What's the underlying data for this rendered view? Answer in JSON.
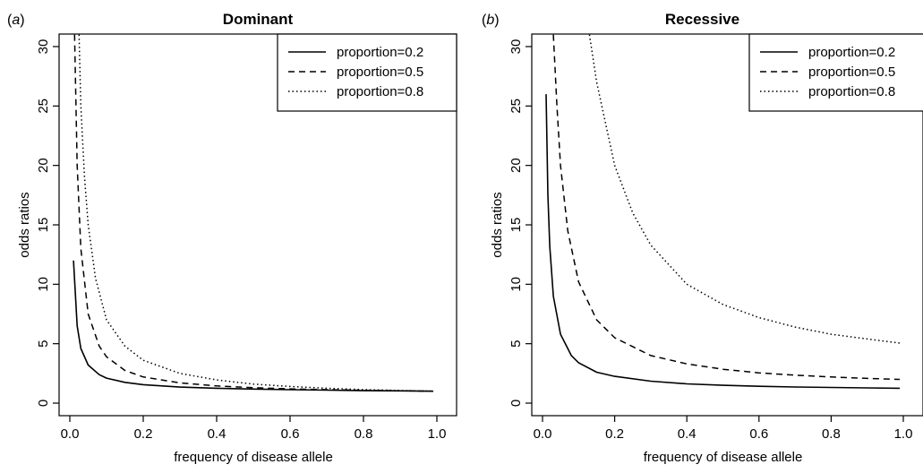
{
  "chart_data": [
    {
      "type": "line",
      "panel_label": "(a)",
      "title": "Dominant",
      "xlabel": "frequency of disease allele",
      "ylabel": "odds ratios",
      "xlim": [
        0,
        1
      ],
      "ylim": [
        0,
        30
      ],
      "xticks": [
        "0.0",
        "0.2",
        "0.4",
        "0.6",
        "0.8",
        "1.0"
      ],
      "yticks": [
        "0",
        "5",
        "10",
        "15",
        "20",
        "25",
        "30"
      ],
      "legend_position": "top-right",
      "legend_entries": [
        "proportion=0.2",
        "proportion=0.5",
        "proportion=0.8"
      ],
      "series": [
        {
          "name": "proportion=0.2",
          "style": "solid",
          "x": [
            0.01,
            0.02,
            0.03,
            0.05,
            0.08,
            0.1,
            0.15,
            0.2,
            0.3,
            0.4,
            0.5,
            0.6,
            0.7,
            0.8,
            0.9,
            0.99
          ],
          "y": [
            12.0,
            6.5,
            4.6,
            3.2,
            2.4,
            2.1,
            1.75,
            1.55,
            1.35,
            1.25,
            1.18,
            1.13,
            1.09,
            1.05,
            1.03,
            1.0
          ]
        },
        {
          "name": "proportion=0.5",
          "style": "dashed",
          "x": [
            0.013,
            0.02,
            0.03,
            0.05,
            0.08,
            0.1,
            0.15,
            0.2,
            0.3,
            0.4,
            0.5,
            0.6,
            0.7,
            0.8,
            0.9,
            0.99
          ],
          "y": [
            31.0,
            20.0,
            13.0,
            7.5,
            4.8,
            3.9,
            2.75,
            2.2,
            1.7,
            1.45,
            1.3,
            1.2,
            1.13,
            1.08,
            1.04,
            1.0
          ]
        },
        {
          "name": "proportion=0.8",
          "style": "dotted",
          "x": [
            0.025,
            0.03,
            0.04,
            0.05,
            0.07,
            0.1,
            0.15,
            0.2,
            0.3,
            0.4,
            0.5,
            0.6,
            0.7,
            0.8,
            0.9,
            0.99
          ],
          "y": [
            31.0,
            25.0,
            19.0,
            15.0,
            10.5,
            7.0,
            4.8,
            3.6,
            2.5,
            1.95,
            1.6,
            1.4,
            1.25,
            1.14,
            1.06,
            1.0
          ]
        }
      ]
    },
    {
      "type": "line",
      "panel_label": "(b)",
      "title": "Recessive",
      "xlabel": "frequency of disease allele",
      "ylabel": "odds ratios",
      "xlim": [
        0,
        1
      ],
      "ylim": [
        0,
        30
      ],
      "xticks": [
        "0.0",
        "0.2",
        "0.4",
        "0.6",
        "0.8",
        "1.0"
      ],
      "yticks": [
        "0",
        "5",
        "10",
        "15",
        "20",
        "25",
        "30"
      ],
      "legend_position": "top-right",
      "legend_entries": [
        "proportion=0.2",
        "proportion=0.5",
        "proportion=0.8"
      ],
      "series": [
        {
          "name": "proportion=0.2",
          "style": "solid",
          "x": [
            0.01,
            0.015,
            0.02,
            0.03,
            0.05,
            0.08,
            0.1,
            0.15,
            0.2,
            0.3,
            0.4,
            0.5,
            0.6,
            0.7,
            0.8,
            0.9,
            0.99
          ],
          "y": [
            26.0,
            17.5,
            13.2,
            9.0,
            5.8,
            4.0,
            3.4,
            2.6,
            2.25,
            1.85,
            1.62,
            1.5,
            1.42,
            1.36,
            1.32,
            1.28,
            1.25
          ]
        },
        {
          "name": "proportion=0.5",
          "style": "dashed",
          "x": [
            0.03,
            0.04,
            0.05,
            0.07,
            0.1,
            0.15,
            0.2,
            0.3,
            0.4,
            0.5,
            0.6,
            0.7,
            0.8,
            0.9,
            0.99
          ],
          "y": [
            31.0,
            25.0,
            20.0,
            14.5,
            10.2,
            7.0,
            5.5,
            4.0,
            3.3,
            2.85,
            2.55,
            2.35,
            2.2,
            2.08,
            2.0
          ]
        },
        {
          "name": "proportion=0.8",
          "style": "dotted",
          "x": [
            0.13,
            0.15,
            0.2,
            0.25,
            0.3,
            0.4,
            0.5,
            0.6,
            0.7,
            0.8,
            0.9,
            0.99
          ],
          "y": [
            31.0,
            27.0,
            20.0,
            16.0,
            13.3,
            10.0,
            8.3,
            7.2,
            6.4,
            5.8,
            5.4,
            5.05
          ]
        }
      ]
    }
  ]
}
